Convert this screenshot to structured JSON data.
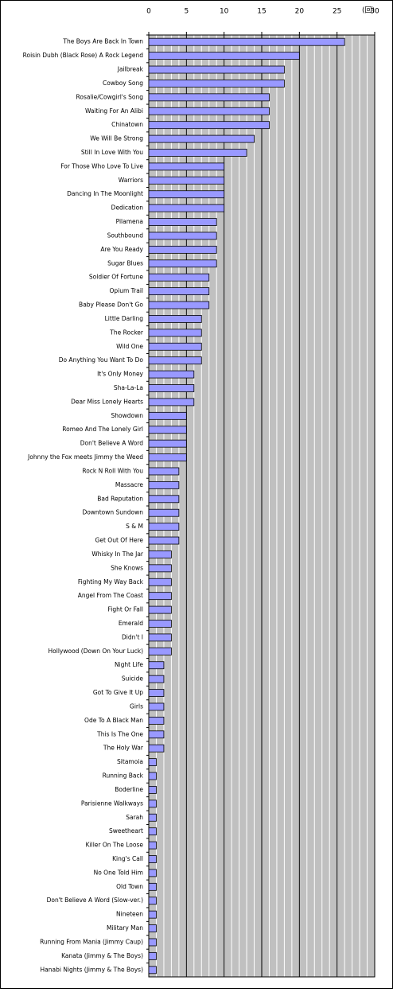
{
  "chart_data": {
    "type": "barh",
    "unit_label": "(回)",
    "categories": [
      "The Boys Are Back In Town",
      "Roisin Dubh (Black Rose) A Rock Legend",
      "Jailbreak",
      "Cowboy Song",
      "Rosalie/Cowgirl's Song",
      "Waiting For An Alibi",
      "Chinatown",
      "We Will Be Strong",
      "Still In Love With You",
      "For Those Who Love To Live",
      "Warriors",
      "Dancing In The Moonlight",
      "Dedication",
      "Pilamena",
      "Southbound",
      "Are You Ready",
      "Sugar Blues",
      "Soldier Of Fortune",
      "Opium Trail",
      "Baby Please Don't Go",
      "Little Darling",
      "The Rocker",
      "Wild One",
      "Do Anything You Want To Do",
      "It's Only Money",
      "Sha-La-La",
      "Dear Miss Lonely Hearts",
      "Showdown",
      "Romeo And The Lonely Girl",
      "Don't Believe A Word",
      "Johnny the Fox meets Jimmy the Weed",
      "Rock N Roll With You",
      "Massacre",
      "Bad Reputation",
      "Downtown Sundown",
      "S & M",
      "Get Out Of Here",
      "Whisky In The Jar",
      "She Knows",
      "Fighting My Way Back",
      "Angel From The Coast",
      "Fight Or Fall",
      "Emerald",
      "Didn't I",
      "Hollywood (Down On Your Luck)",
      "Night Life",
      "Suicide",
      "Got To Give It Up",
      "Girls",
      "Ode To A Black Man",
      "This Is The One",
      "The Holy War",
      "Sitamoia",
      "Running Back",
      "Boderline",
      "Parisienne Walkways",
      "Sarah",
      "Sweetheart",
      "Killer On The Loose",
      "King's Call",
      "No One Told Him",
      "Old Town",
      "Don't Believe A Word (Slow-ver.)",
      "Nineteen",
      "Military Man",
      "Running From Mania (Jimmy Caup)",
      "Kanata (Jimmy & The Boys)",
      "Hanabi Nights (Jimmy & The Boys)"
    ],
    "values": [
      26,
      20,
      18,
      18,
      16,
      16,
      16,
      14,
      13,
      10,
      10,
      10,
      10,
      9,
      9,
      9,
      9,
      8,
      8,
      8,
      7,
      7,
      7,
      7,
      6,
      6,
      6,
      5,
      5,
      5,
      5,
      4,
      4,
      4,
      4,
      4,
      4,
      3,
      3,
      3,
      3,
      3,
      3,
      3,
      3,
      2,
      2,
      2,
      2,
      2,
      2,
      2,
      1,
      1,
      1,
      1,
      1,
      1,
      1,
      1,
      1,
      1,
      1,
      1,
      1,
      1,
      1,
      1
    ],
    "color": "#9999ff",
    "xlim": [
      0,
      30
    ],
    "xticks": [
      0,
      5,
      10,
      15,
      20,
      25,
      30
    ],
    "minor_grid_interval": 1,
    "grid": true
  }
}
